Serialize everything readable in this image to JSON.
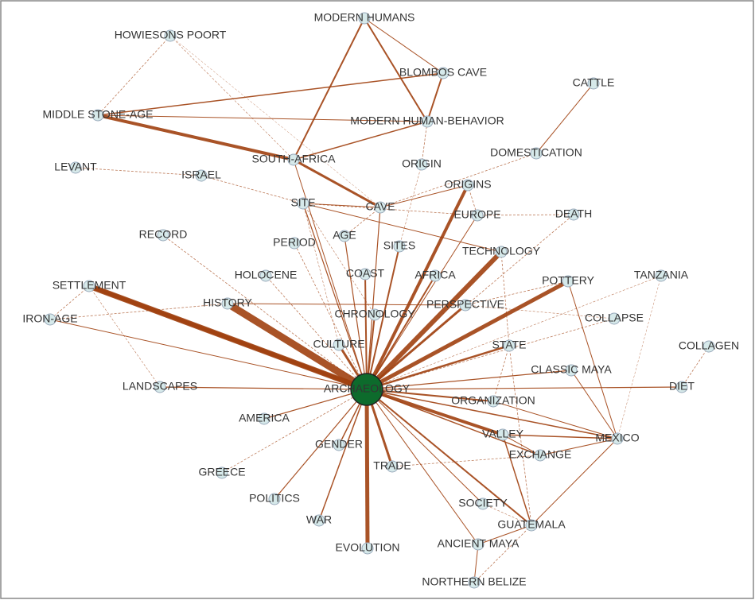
{
  "nodes": [
    {
      "label": "ARCHAEOLOGY"
    },
    {
      "label": "MODERN HUMANS"
    },
    {
      "label": "HOWIESONS POORT"
    },
    {
      "label": "BLOMBOS CAVE"
    },
    {
      "label": "CATTLE"
    },
    {
      "label": "MIDDLE STONE-AGE"
    },
    {
      "label": "MODERN HUMAN-BEHAVIOR"
    },
    {
      "label": "DOMESTICATION"
    },
    {
      "label": "LEVANT"
    },
    {
      "label": "ISRAEL"
    },
    {
      "label": "SOUTH-AFRICA"
    },
    {
      "label": "ORIGIN"
    },
    {
      "label": "ORIGINS"
    },
    {
      "label": "SITE"
    },
    {
      "label": "CAVE"
    },
    {
      "label": "EUROPE"
    },
    {
      "label": "DEATH"
    },
    {
      "label": "RECORD"
    },
    {
      "label": "AGE"
    },
    {
      "label": "PERIOD"
    },
    {
      "label": "SITES"
    },
    {
      "label": "TECHNOLOGY"
    },
    {
      "label": "HOLOCENE"
    },
    {
      "label": "COAST"
    },
    {
      "label": "AFRICA"
    },
    {
      "label": "TANZANIA"
    },
    {
      "label": "SETTLEMENT"
    },
    {
      "label": "POTTERY"
    },
    {
      "label": "HISTORY"
    },
    {
      "label": "PERSPECTIVE"
    },
    {
      "label": "CHRONOLOGY"
    },
    {
      "label": "IRON-AGE"
    },
    {
      "label": "COLLAPSE"
    },
    {
      "label": "CULTURE"
    },
    {
      "label": "STATE"
    },
    {
      "label": "COLLAGEN"
    },
    {
      "label": "CLASSIC MAYA"
    },
    {
      "label": "LANDSCAPES"
    },
    {
      "label": "DIET"
    },
    {
      "label": "ORGANIZATION"
    },
    {
      "label": "AMERICA"
    },
    {
      "label": "VALLEY"
    },
    {
      "label": "MEXICO"
    },
    {
      "label": "GENDER"
    },
    {
      "label": "EXCHANGE"
    },
    {
      "label": "TRADE"
    },
    {
      "label": "GREECE"
    },
    {
      "label": "POLITICS"
    },
    {
      "label": "SOCIETY"
    },
    {
      "label": "WAR"
    },
    {
      "label": "GUATEMALA"
    },
    {
      "label": "ANCIENT MAYA"
    },
    {
      "label": "EVOLUTION"
    },
    {
      "label": "NORTHERN BELIZE"
    }
  ]
}
